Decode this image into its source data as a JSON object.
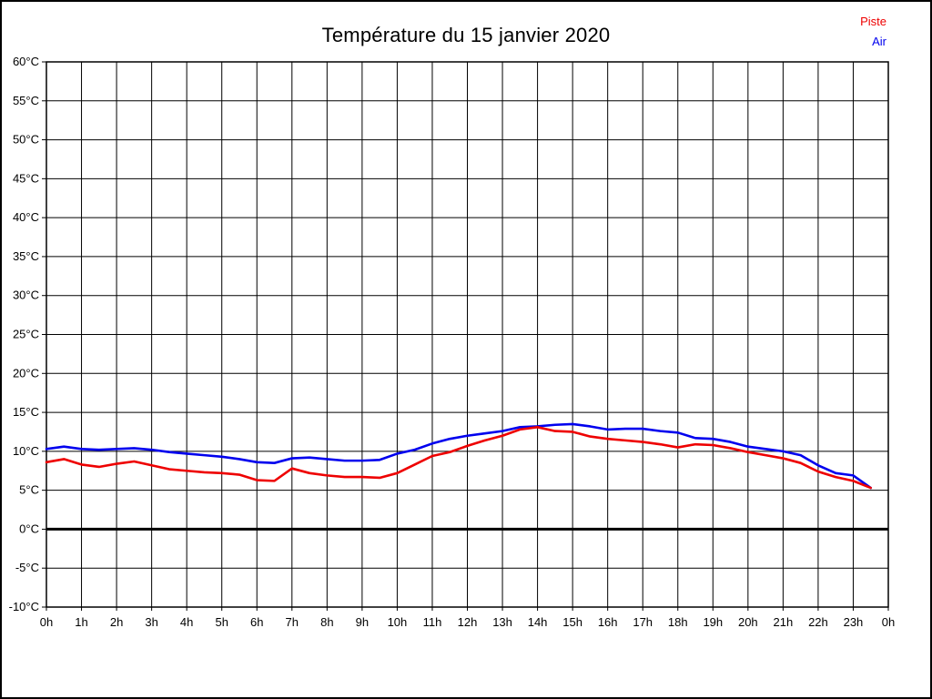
{
  "header": {
    "title": "Température du 15 janvier 2020"
  },
  "legend": {
    "items": [
      {
        "label": "Piste",
        "color": "#ee0000"
      },
      {
        "label": "Air",
        "color": "#0000ee"
      }
    ]
  },
  "chart_data": {
    "type": "line",
    "title": "Température du 15 janvier 2020",
    "xlabel": "",
    "ylabel": "",
    "x_unit": "hours",
    "xlim": [
      0,
      24
    ],
    "ylim": [
      -10,
      60
    ],
    "y_tick_step": 5,
    "grid": true,
    "zero_line_value": 0,
    "legend_position": "top-right",
    "grid_color": "#000000",
    "zero_line_color": "#000000",
    "x_tick_labels": [
      "0h",
      "1h",
      "2h",
      "3h",
      "4h",
      "5h",
      "6h",
      "7h",
      "8h",
      "9h",
      "10h",
      "11h",
      "12h",
      "13h",
      "14h",
      "15h",
      "16h",
      "17h",
      "18h",
      "19h",
      "20h",
      "21h",
      "22h",
      "23h",
      "0h"
    ],
    "y_tick_labels_top_down": [
      "60°C",
      "55°C",
      "50°C",
      "45°C",
      "40°C",
      "35°C",
      "30°C",
      "25°C",
      "20°C",
      "15°C",
      "10°C",
      "5°C",
      "0°C",
      "-5°C",
      "-10°C"
    ],
    "x": [
      0,
      0.5,
      1,
      1.5,
      2,
      2.5,
      3,
      3.5,
      4,
      4.5,
      5,
      5.5,
      6,
      6.5,
      7,
      7.5,
      8,
      8.5,
      9,
      9.5,
      10,
      10.5,
      11,
      11.5,
      12,
      12.5,
      13,
      13.5,
      14,
      14.5,
      15,
      15.5,
      16,
      16.5,
      17,
      17.5,
      18,
      18.5,
      19,
      19.5,
      20,
      20.5,
      21,
      21.5,
      22,
      22.5,
      23,
      23.5
    ],
    "series": [
      {
        "name": "Piste",
        "color": "#ee0000",
        "values": [
          8.6,
          9.0,
          8.3,
          8.0,
          8.4,
          8.7,
          8.2,
          7.7,
          7.5,
          7.3,
          7.2,
          7.0,
          6.3,
          6.2,
          7.8,
          7.2,
          6.9,
          6.7,
          6.7,
          6.6,
          7.2,
          8.3,
          9.4,
          9.9,
          10.7,
          11.4,
          12.0,
          12.8,
          13.1,
          12.6,
          12.5,
          11.9,
          11.6,
          11.4,
          11.2,
          10.9,
          10.5,
          10.9,
          10.8,
          10.4,
          9.9,
          9.5,
          9.1,
          8.5,
          7.4,
          6.7,
          6.2,
          5.3
        ]
      },
      {
        "name": "Air",
        "color": "#0000ee",
        "values": [
          10.3,
          10.6,
          10.3,
          10.2,
          10.3,
          10.4,
          10.2,
          9.9,
          9.7,
          9.5,
          9.3,
          9.0,
          8.6,
          8.5,
          9.1,
          9.2,
          9.0,
          8.8,
          8.8,
          8.9,
          9.7,
          10.2,
          11.0,
          11.6,
          12.0,
          12.3,
          12.6,
          13.1,
          13.2,
          13.4,
          13.5,
          13.2,
          12.8,
          12.9,
          12.9,
          12.6,
          12.4,
          11.7,
          11.6,
          11.2,
          10.6,
          10.3,
          10.0,
          9.5,
          8.2,
          7.2,
          6.9,
          5.3
        ]
      }
    ]
  }
}
